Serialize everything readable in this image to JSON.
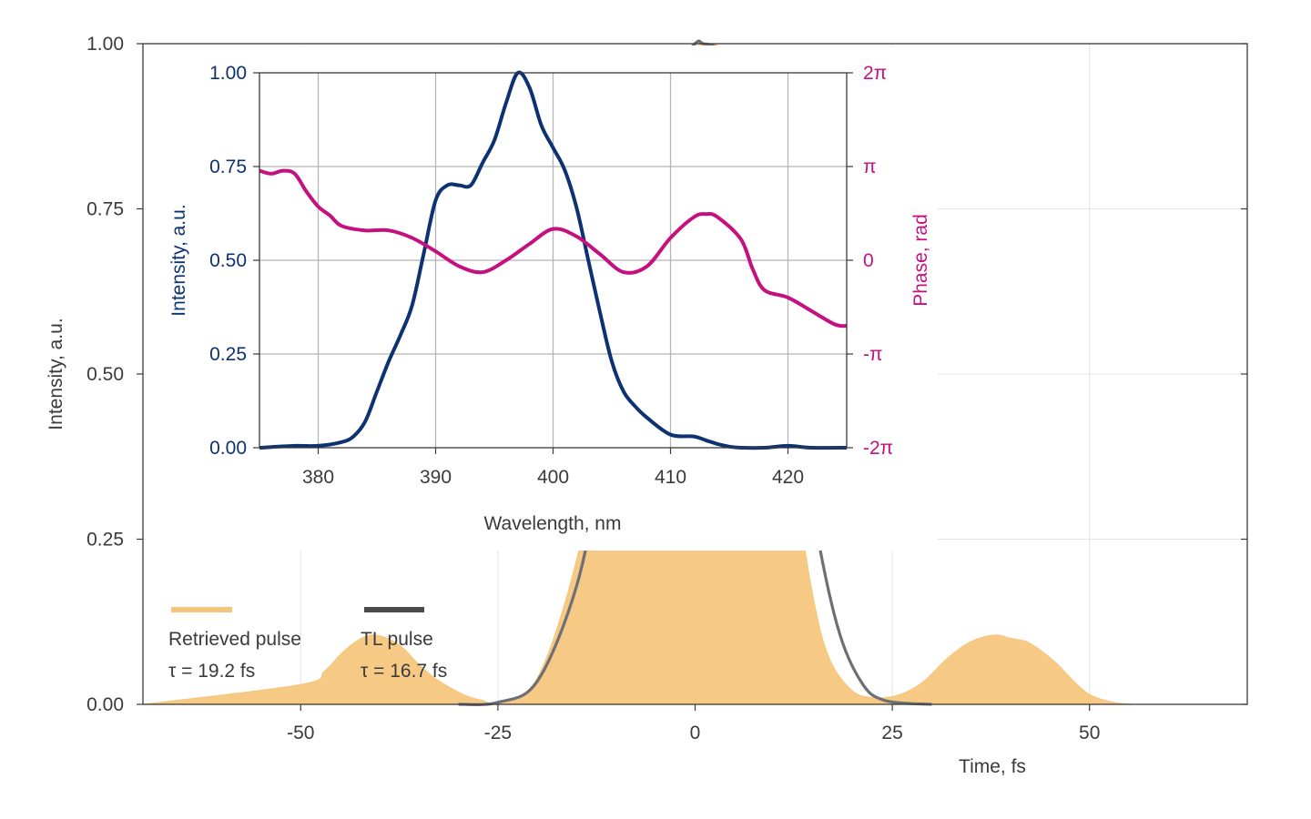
{
  "chart_data": [
    {
      "id": "main",
      "type": "area",
      "xlabel": "Time, fs",
      "ylabel": "Intensity, a.u.",
      "xlim": [
        -70,
        70
      ],
      "ylim": [
        0,
        1.0
      ],
      "xticks": [
        -50,
        -25,
        0,
        25,
        50
      ],
      "xtick_labels": [
        "-50",
        "-25",
        "0",
        "25",
        "50"
      ],
      "yticks": [
        0,
        0.25,
        0.5,
        0.75,
        1.0
      ],
      "ytick_labels": [
        "0.00",
        "0.25",
        "0.50",
        "0.75",
        "1.00"
      ],
      "grid": true,
      "series": [
        {
          "name": "Retrieved pulse",
          "note": "τ = 19.2 fs",
          "style": "filled",
          "color": "#f5c67a",
          "x": [
            -70,
            -50,
            -47,
            -45,
            -43,
            -41,
            -39,
            -37,
            -35,
            -33,
            -31,
            -29,
            -27,
            -25,
            -20,
            -15,
            -12,
            -9,
            -6,
            -3,
            0,
            2,
            3,
            5,
            7,
            9,
            11,
            13,
            15,
            17,
            20,
            23,
            26,
            29,
            32,
            35,
            38,
            40,
            42,
            44,
            46,
            48,
            50,
            53,
            56,
            60,
            70
          ],
          "y": [
            0,
            0.03,
            0.05,
            0.075,
            0.095,
            0.105,
            0.1,
            0.085,
            0.06,
            0.04,
            0.025,
            0.013,
            0.006,
            0.004,
            0.04,
            0.22,
            0.42,
            0.64,
            0.84,
            0.96,
            0.995,
            1.0,
            0.995,
            0.95,
            0.85,
            0.69,
            0.5,
            0.31,
            0.16,
            0.07,
            0.02,
            0.01,
            0.015,
            0.035,
            0.07,
            0.095,
            0.105,
            0.1,
            0.095,
            0.08,
            0.06,
            0.035,
            0.015,
            0.003,
            0,
            0,
            0
          ]
        },
        {
          "name": "TL pulse",
          "note": "τ = 16.7 fs",
          "style": "line",
          "color": "#6e6e76",
          "x": [
            -30,
            -25,
            -20,
            -15,
            -12,
            -9,
            -6,
            -3,
            0,
            1,
            3,
            6,
            9,
            12,
            15,
            18,
            21,
            24,
            30
          ],
          "y": [
            0,
            0.003,
            0.035,
            0.18,
            0.36,
            0.58,
            0.8,
            0.95,
            1.0,
            1.0,
            0.99,
            0.93,
            0.77,
            0.53,
            0.29,
            0.12,
            0.035,
            0.006,
            0
          ]
        }
      ]
    },
    {
      "id": "inset",
      "type": "line",
      "xlabel": "Wavelength, nm",
      "ylabel": "Intensity, a.u.",
      "ylabel_right": "Phase, rad",
      "xlim": [
        375,
        425
      ],
      "ylim": [
        0,
        1.0
      ],
      "ylim_right": [
        -6.2832,
        6.2832
      ],
      "xticks": [
        380,
        390,
        400,
        410,
        420
      ],
      "xtick_labels": [
        "380",
        "390",
        "400",
        "410",
        "420"
      ],
      "yticks": [
        0,
        0.25,
        0.5,
        0.75,
        1.0
      ],
      "ytick_labels": [
        "0.00",
        "0.25",
        "0.50",
        "0.75",
        "1.00"
      ],
      "yticks_right": [
        -6.2832,
        -3.1416,
        0,
        3.1416,
        6.2832
      ],
      "ytick_labels_right": [
        "-2π",
        "-π",
        "0",
        "π",
        "2π"
      ],
      "grid": true,
      "series": [
        {
          "style": "line",
          "axis": "left",
          "color": "#0d3272",
          "x": [
            375,
            378,
            380,
            382,
            383,
            384,
            385,
            386,
            387,
            388,
            389,
            390,
            391,
            392,
            393,
            394,
            395,
            396,
            397,
            398,
            399,
            400,
            401,
            402,
            403,
            404,
            405,
            406,
            407,
            408,
            410,
            412,
            413,
            414,
            415,
            416,
            418,
            420,
            422,
            425
          ],
          "y": [
            0,
            0.005,
            0.005,
            0.015,
            0.03,
            0.07,
            0.15,
            0.23,
            0.3,
            0.38,
            0.52,
            0.66,
            0.7,
            0.7,
            0.7,
            0.76,
            0.82,
            0.92,
            1.0,
            0.96,
            0.86,
            0.8,
            0.74,
            0.64,
            0.5,
            0.36,
            0.23,
            0.15,
            0.11,
            0.08,
            0.035,
            0.03,
            0.02,
            0.01,
            0.003,
            0,
            0.0,
            0.005,
            0,
            0
          ]
        },
        {
          "style": "line",
          "axis": "right",
          "color": "#c4117f",
          "x": [
            375,
            376,
            377,
            378,
            379,
            380,
            381,
            382,
            384,
            386,
            388,
            390,
            392,
            394,
            396,
            398,
            400,
            402,
            404,
            406,
            408,
            410,
            412,
            413,
            414,
            416,
            417,
            418,
            420,
            422,
            424,
            425
          ],
          "y": [
            3.0,
            2.9,
            3.0,
            2.9,
            2.3,
            1.8,
            1.5,
            1.15,
            1.0,
            1.0,
            0.75,
            0.3,
            -0.2,
            -0.4,
            0.0,
            0.55,
            1.05,
            0.8,
            0.2,
            -0.4,
            -0.2,
            0.75,
            1.45,
            1.55,
            1.45,
            0.7,
            -0.3,
            -1.0,
            -1.25,
            -1.7,
            -2.15,
            -2.2
          ]
        }
      ]
    }
  ],
  "legend": [
    {
      "label": "Retrieved pulse",
      "note": "τ = 19.2 fs",
      "color": "#f5c67a"
    },
    {
      "label": "TL pulse",
      "note": "τ = 16.7 fs",
      "color": "#4a4a4a"
    }
  ]
}
